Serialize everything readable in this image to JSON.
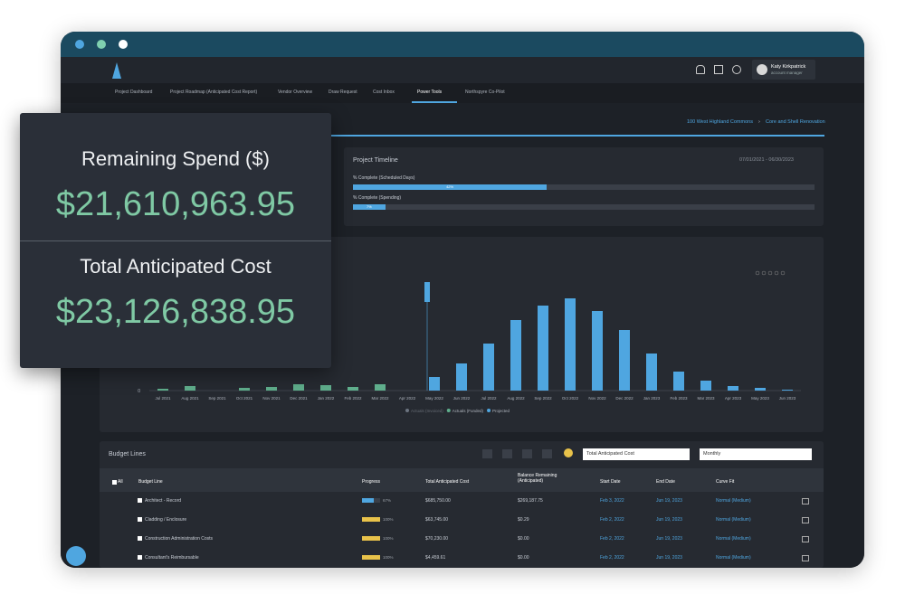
{
  "app": {
    "user_name": "Katy Kirkpatrick",
    "user_role": "account manager",
    "nav": [
      "Project Dashboard",
      "Project Roadmap (Anticipated Cost Report)",
      "Vendor Overview",
      "Draw Request",
      "Cost Inbox",
      "Power Tools",
      "Northspyre Co-Pilot"
    ],
    "breadcrumb": [
      "100 West Highland Commons",
      "Core and Shell Renovation"
    ]
  },
  "summary": {
    "remaining_label": "Remaining Spend ($)",
    "remaining_value": "$21,610,963.95",
    "total_label": "Total Anticipated Cost",
    "total_value": "$23,126,838.95"
  },
  "timeline": {
    "title": "Project Timeline",
    "range": "07/01/2021 - 06/30/2023",
    "bars": [
      {
        "name": "% Complete (Scheduled Days)",
        "value": 42,
        "label": "42%"
      },
      {
        "name": "% Complete (Spending)",
        "value": 7,
        "label": "7%"
      }
    ]
  },
  "chart_data": {
    "type": "bar",
    "categories": [
      "Jul 2021",
      "Aug 2021",
      "Sep 2021",
      "Oct 2021",
      "Nov 2021",
      "Dec 2021",
      "Jan 2022",
      "Feb 2022",
      "Mar 2022",
      "Apr 2022",
      "May 2022",
      "Jun 2022",
      "Jul 2022",
      "Aug 2022",
      "Sep 2022",
      "Oct 2022",
      "Nov 2022",
      "Dec 2022",
      "Jan 2023",
      "Feb 2023",
      "Mar 2023",
      "Apr 2023",
      "May 2023",
      "Jun 2023"
    ],
    "series": [
      {
        "name": "Actuals (Invoiced)",
        "color": "#6b7480",
        "values": [
          null,
          null,
          null,
          null,
          null,
          null,
          null,
          null,
          null,
          null,
          null,
          null,
          null,
          null,
          null,
          null,
          null,
          null,
          null,
          null,
          null,
          null,
          null,
          null
        ]
      },
      {
        "name": "Actuals (Funded)",
        "color": "#5fae8c",
        "values": [
          2,
          5,
          0,
          3,
          4,
          7,
          6,
          4,
          7,
          0,
          null,
          null,
          null,
          null,
          null,
          null,
          null,
          null,
          null,
          null,
          null,
          null,
          null,
          null
        ]
      },
      {
        "name": "Projected",
        "color": "#4fa6e0",
        "values": [
          null,
          null,
          null,
          null,
          null,
          null,
          null,
          null,
          null,
          null,
          15,
          30,
          52,
          78,
          94,
          102,
          88,
          67,
          41,
          21,
          11,
          5,
          3,
          1
        ]
      }
    ],
    "ylim": [
      0,
      120
    ],
    "yticks": [
      0
    ]
  },
  "budget": {
    "title": "Budget Lines",
    "metric": "Total Anticipated Cost",
    "period": "Monthly",
    "columns": [
      "All",
      "Budget Line",
      "Progress",
      "Total Anticipated Cost",
      "Balance Remaining (Anticipated)",
      "Start Date",
      "End Date",
      "Curve Fit"
    ],
    "rows": [
      {
        "name": "Architect - Record",
        "progress": {
          "value": 67,
          "label": "67%"
        },
        "total": "$685,750.00",
        "balance": "$269,187.75",
        "start": "Feb 3, 2022",
        "end": "Jun 19, 2023",
        "curve": "Normal (Medium)"
      },
      {
        "name": "Cladding / Enclosure",
        "progress": {
          "value": 100,
          "label": "100%"
        },
        "total": "$63,745.00",
        "balance": "$0.29",
        "start": "Feb 2, 2022",
        "end": "Jun 19, 2023",
        "curve": "Normal (Medium)"
      },
      {
        "name": "Construction Administration Costs",
        "progress": {
          "value": 100,
          "label": "100%"
        },
        "total": "$70,230.00",
        "balance": "$0.00",
        "start": "Feb 2, 2022",
        "end": "Jun 19, 2023",
        "curve": "Normal (Medium)"
      },
      {
        "name": "Consultant's Reimbursable",
        "progress": {
          "value": 100,
          "label": "100%"
        },
        "total": "$4,459.61",
        "balance": "$0.00",
        "start": "Feb 2, 2022",
        "end": "Jun 19, 2023",
        "curve": "Normal (Medium)"
      }
    ]
  }
}
